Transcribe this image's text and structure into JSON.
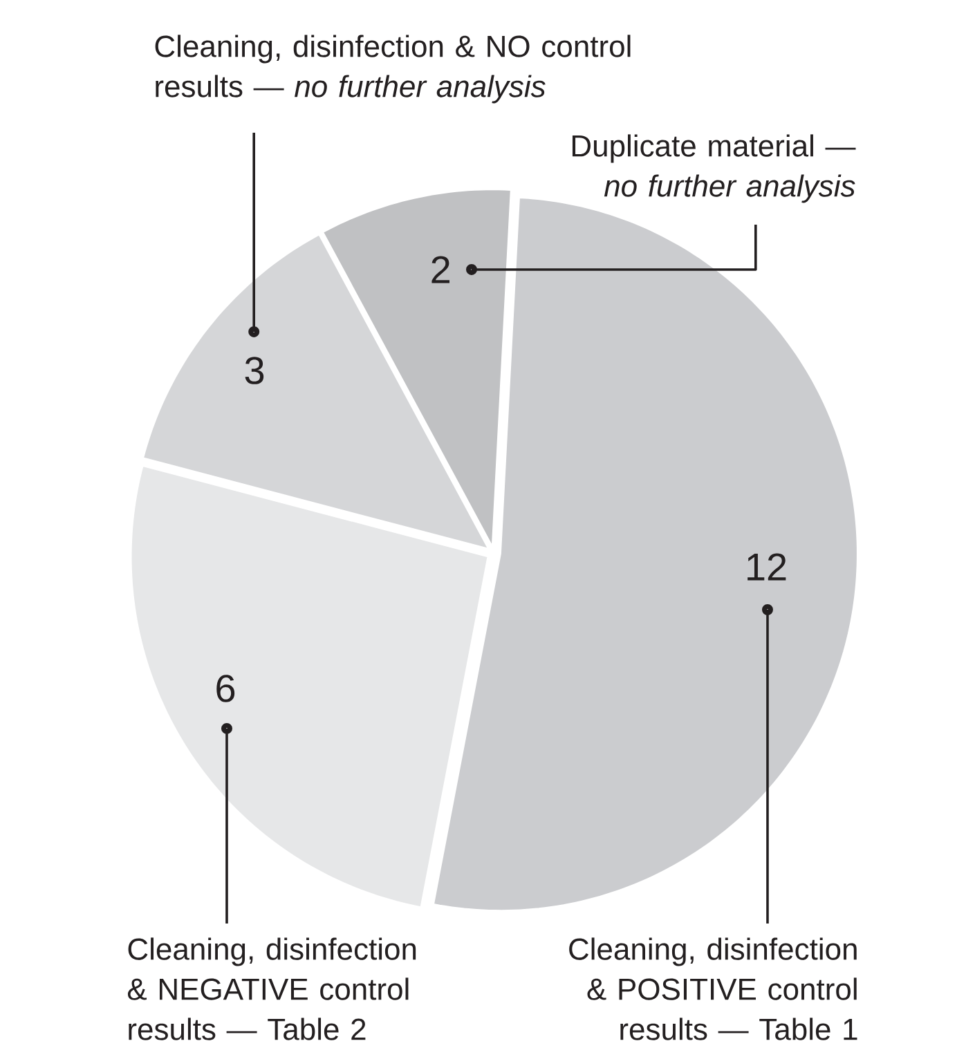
{
  "chart_data": {
    "type": "pie",
    "categories": [
      "Cleaning, disinfection & POSITIVE control results — Table 1",
      "Cleaning, disinfection & NEGATIVE control results — Table 2",
      "Cleaning, disinfection & NO control results — *no further analysis*",
      "Duplicate material — *no further analysis*"
    ],
    "values": [
      12,
      6,
      3,
      2
    ],
    "colors": [
      "#cbcccf",
      "#e6e7e8",
      "#d5d6d8",
      "#c0c1c3"
    ],
    "data_labels": true
  }
}
